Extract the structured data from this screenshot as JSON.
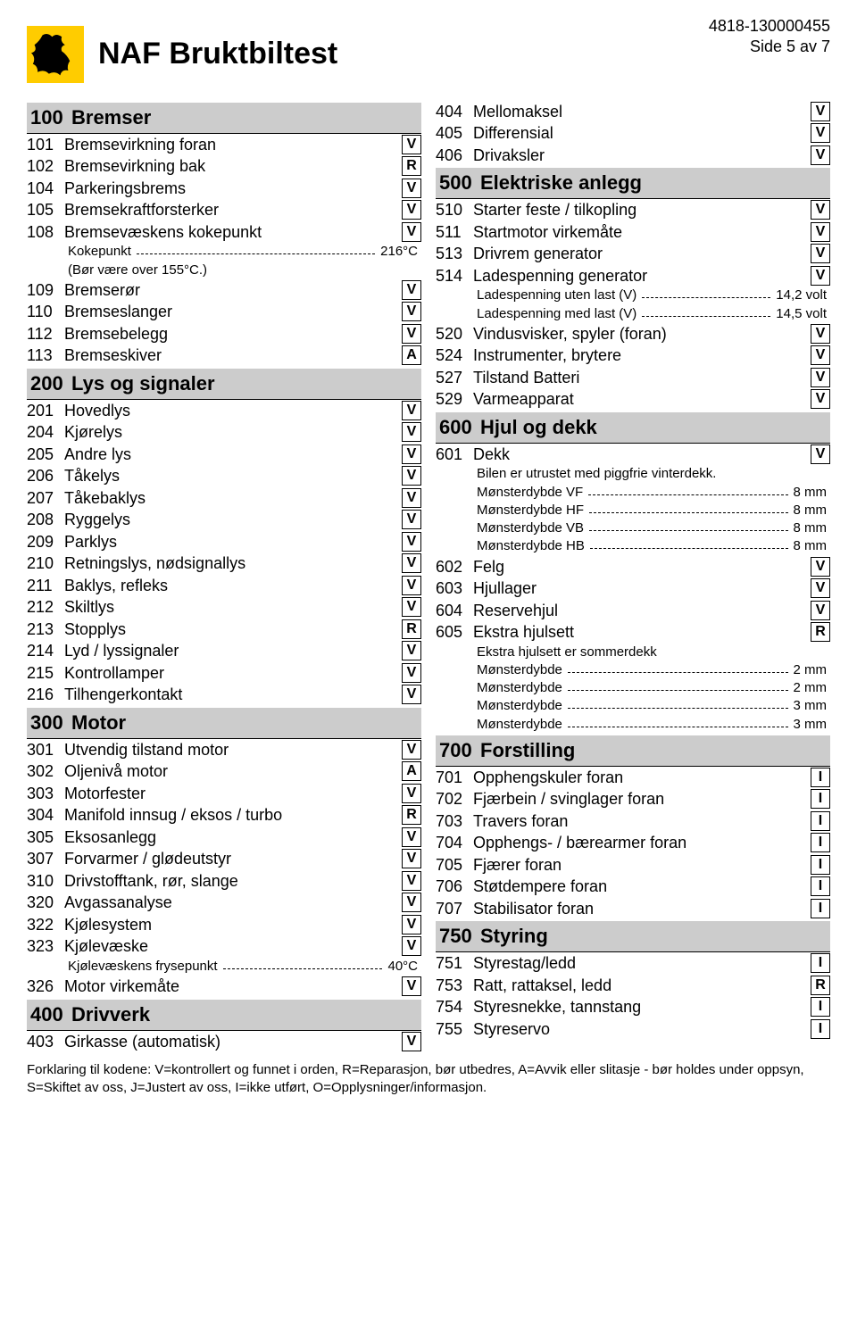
{
  "meta": {
    "ref": "4818-130000455",
    "page": "Side 5 av 7"
  },
  "title": "NAF Bruktbiltest",
  "colors": {
    "logo_bg": "#ffcc00",
    "section_bg": "#cccccc"
  },
  "sections_left": [
    {
      "num": "100",
      "title": "Bremser",
      "items": [
        {
          "num": "101",
          "label": "Bremsevirkning foran",
          "code": "V"
        },
        {
          "num": "102",
          "label": "Bremsevirkning bak",
          "code": "R"
        },
        {
          "num": "104",
          "label": "Parkeringsbrems",
          "code": "V"
        },
        {
          "num": "105",
          "label": "Bremsekraftforsterker",
          "code": "V"
        },
        {
          "num": "108",
          "label": "Bremsevæskens kokepunkt",
          "code": "V",
          "subs": [
            {
              "label": "Kokepunkt",
              "value": "216°C"
            },
            {
              "note": "(Bør være over 155°C.)"
            }
          ]
        },
        {
          "num": "109",
          "label": "Bremserør",
          "code": "V"
        },
        {
          "num": "110",
          "label": "Bremseslanger",
          "code": "V"
        },
        {
          "num": "112",
          "label": "Bremsebelegg",
          "code": "V"
        },
        {
          "num": "113",
          "label": "Bremseskiver",
          "code": "A"
        }
      ]
    },
    {
      "num": "200",
      "title": "Lys og signaler",
      "items": [
        {
          "num": "201",
          "label": "Hovedlys",
          "code": "V"
        },
        {
          "num": "204",
          "label": "Kjørelys",
          "code": "V"
        },
        {
          "num": "205",
          "label": "Andre lys",
          "code": "V"
        },
        {
          "num": "206",
          "label": "Tåkelys",
          "code": "V"
        },
        {
          "num": "207",
          "label": "Tåkebaklys",
          "code": "V"
        },
        {
          "num": "208",
          "label": "Ryggelys",
          "code": "V"
        },
        {
          "num": "209",
          "label": "Parklys",
          "code": "V"
        },
        {
          "num": "210",
          "label": "Retningslys,  nødsignallys",
          "code": "V"
        },
        {
          "num": "211",
          "label": "Baklys, refleks",
          "code": "V"
        },
        {
          "num": "212",
          "label": "Skiltlys",
          "code": "V"
        },
        {
          "num": "213",
          "label": "Stopplys",
          "code": "R"
        },
        {
          "num": "214",
          "label": "Lyd / lyssignaler",
          "code": "V"
        },
        {
          "num": "215",
          "label": "Kontrollamper",
          "code": "V"
        },
        {
          "num": "216",
          "label": "Tilhengerkontakt",
          "code": "V"
        }
      ]
    },
    {
      "num": "300",
      "title": "Motor",
      "items": [
        {
          "num": "301",
          "label": "Utvendig tilstand motor",
          "code": "V"
        },
        {
          "num": "302",
          "label": "Oljenivå motor",
          "code": "A"
        },
        {
          "num": "303",
          "label": "Motorfester",
          "code": "V"
        },
        {
          "num": "304",
          "label": "Manifold innsug / eksos / turbo",
          "code": "R"
        },
        {
          "num": "305",
          "label": "Eksosanlegg",
          "code": "V"
        },
        {
          "num": "307",
          "label": "Forvarmer / glødeutstyr",
          "code": "V"
        },
        {
          "num": "310",
          "label": "Drivstofftank, rør, slange",
          "code": "V"
        },
        {
          "num": "320",
          "label": "Avgassanalyse",
          "code": "V"
        },
        {
          "num": "322",
          "label": "Kjølesystem",
          "code": "V"
        },
        {
          "num": "323",
          "label": "Kjølevæske",
          "code": "V",
          "subs": [
            {
              "label": "Kjølevæskens frysepunkt",
              "value": "40°C"
            }
          ]
        },
        {
          "num": "326",
          "label": "Motor virkemåte",
          "code": "V"
        }
      ]
    },
    {
      "num": "400",
      "title": "Drivverk",
      "items": [
        {
          "num": "403",
          "label": "Girkasse (automatisk)",
          "code": "V"
        }
      ]
    }
  ],
  "right_pre_items": [
    {
      "num": "404",
      "label": "Mellomaksel",
      "code": "V"
    },
    {
      "num": "405",
      "label": "Differensial",
      "code": "V"
    },
    {
      "num": "406",
      "label": "Drivaksler",
      "code": "V"
    }
  ],
  "sections_right": [
    {
      "num": "500",
      "title": "Elektriske anlegg",
      "items": [
        {
          "num": "510",
          "label": "Starter feste / tilkopling",
          "code": "V"
        },
        {
          "num": "511",
          "label": "Startmotor virkemåte",
          "code": "V"
        },
        {
          "num": "513",
          "label": "Drivrem generator",
          "code": "V"
        },
        {
          "num": "514",
          "label": "Ladespenning generator",
          "code": "V",
          "subs": [
            {
              "label": "Ladespenning uten last (V)",
              "value": "14,2 volt"
            },
            {
              "label": "Ladespenning med last (V)",
              "value": "14,5 volt"
            }
          ]
        },
        {
          "num": "520",
          "label": "Vindusvisker, spyler (foran)",
          "code": "V"
        },
        {
          "num": "524",
          "label": "Instrumenter, brytere",
          "code": "V"
        },
        {
          "num": "527",
          "label": "Tilstand Batteri",
          "code": "V"
        },
        {
          "num": "529",
          "label": "Varmeapparat",
          "code": "V"
        }
      ]
    },
    {
      "num": "600",
      "title": "Hjul og dekk",
      "items": [
        {
          "num": "601",
          "label": "Dekk",
          "code": "V",
          "subs": [
            {
              "note": "Bilen er utrustet med piggfrie vinterdekk."
            },
            {
              "label": "Mønsterdybde VF",
              "value": "8 mm"
            },
            {
              "label": "Mønsterdybde HF",
              "value": "8 mm"
            },
            {
              "label": "Mønsterdybde VB",
              "value": "8 mm"
            },
            {
              "label": "Mønsterdybde HB",
              "value": "8 mm"
            }
          ]
        },
        {
          "num": "602",
          "label": "Felg",
          "code": "V"
        },
        {
          "num": "603",
          "label": "Hjullager",
          "code": "V"
        },
        {
          "num": "604",
          "label": "Reservehjul",
          "code": "V"
        },
        {
          "num": "605",
          "label": "Ekstra hjulsett",
          "code": "R",
          "subs": [
            {
              "note": "Ekstra hjulsett er sommerdekk"
            },
            {
              "label": "Mønsterdybde",
              "value": "2 mm"
            },
            {
              "label": "Mønsterdybde",
              "value": "2 mm"
            },
            {
              "label": "Mønsterdybde",
              "value": "3 mm"
            },
            {
              "label": "Mønsterdybde",
              "value": "3 mm"
            }
          ]
        }
      ]
    },
    {
      "num": "700",
      "title": "Forstilling",
      "items": [
        {
          "num": "701",
          "label": "Opphengskuler foran",
          "code": "I"
        },
        {
          "num": "702",
          "label": "Fjærbein / svinglager foran",
          "code": "I"
        },
        {
          "num": "703",
          "label": "Travers foran",
          "code": "I"
        },
        {
          "num": "704",
          "label": "Opphengs- / bærearmer foran",
          "code": "I"
        },
        {
          "num": "705",
          "label": "Fjærer foran",
          "code": "I"
        },
        {
          "num": "706",
          "label": "Støtdempere foran",
          "code": "I"
        },
        {
          "num": "707",
          "label": "Stabilisator foran",
          "code": "I"
        }
      ]
    },
    {
      "num": "750",
      "title": "Styring",
      "items": [
        {
          "num": "751",
          "label": "Styrestag/ledd",
          "code": "I"
        },
        {
          "num": "753",
          "label": "Ratt, rattaksel, ledd",
          "code": "R"
        },
        {
          "num": "754",
          "label": "Styresnekke, tannstang",
          "code": "I"
        },
        {
          "num": "755",
          "label": "Styreservo",
          "code": "I"
        }
      ]
    }
  ],
  "footer": "Forklaring til kodene: V=kontrollert og funnet i orden, R=Reparasjon, bør utbedres, A=Avvik eller slitasje - bør holdes under oppsyn, S=Skiftet av oss, J=Justert av oss, I=ikke utført, O=Opplysninger/informasjon."
}
